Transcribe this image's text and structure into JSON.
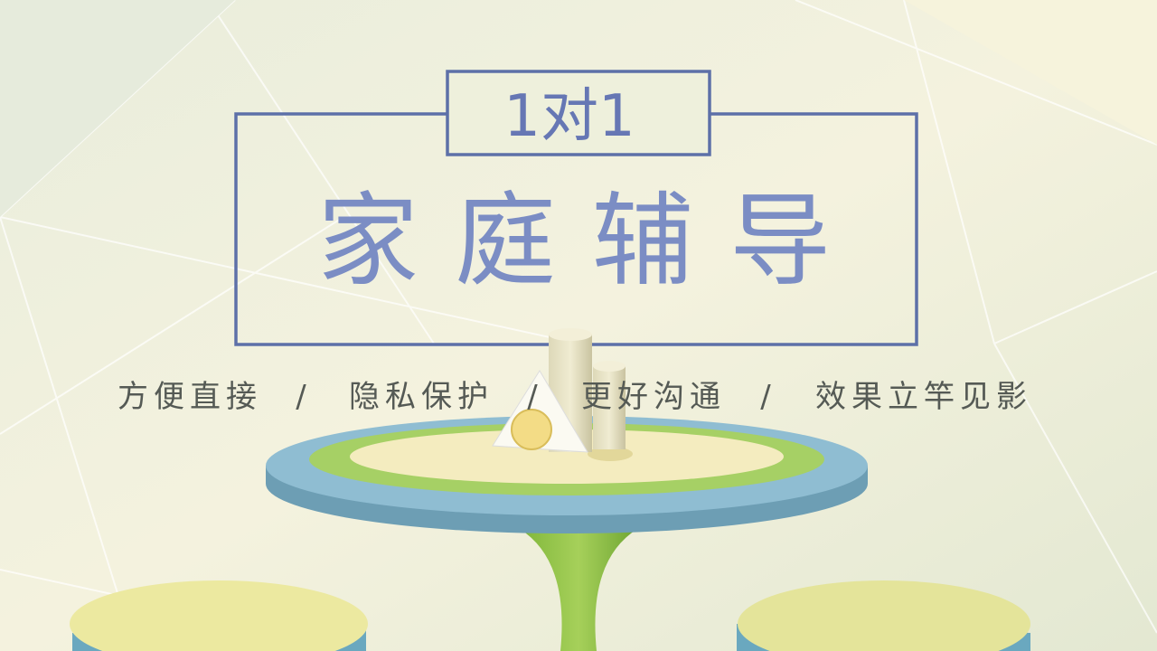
{
  "badge": "1对1",
  "title": "家庭辅导",
  "taglines": [
    "方便直接",
    "隐私保护",
    "更好沟通",
    "效果立竿见影"
  ],
  "separator": "/"
}
